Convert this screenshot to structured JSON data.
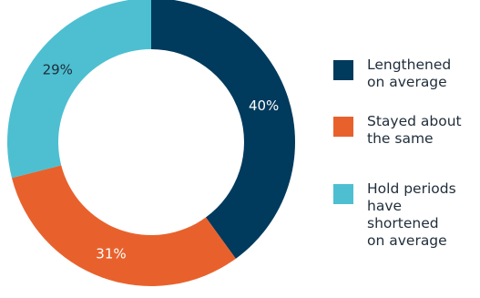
{
  "chart_data": {
    "type": "pie",
    "variant": "donut",
    "title": "",
    "slices": [
      {
        "label": "Lengthened on average",
        "legend_lines": [
          "Lengthened",
          "on average"
        ],
        "value": 40,
        "display": "40%",
        "color": "#003a5d",
        "label_color": "#ffffff"
      },
      {
        "label": "Stayed about the same",
        "legend_lines": [
          "Stayed about",
          "the same"
        ],
        "value": 31,
        "display": "31%",
        "color": "#e8612c",
        "label_color": "#ffffff"
      },
      {
        "label": "Hold periods have shortened on average",
        "legend_lines": [
          "Hold periods",
          "have shortened",
          "on average"
        ],
        "value": 29,
        "display": "29%",
        "color": "#4dbfd1",
        "label_color": "#1f2d3a"
      }
    ],
    "legend_position": "right"
  }
}
